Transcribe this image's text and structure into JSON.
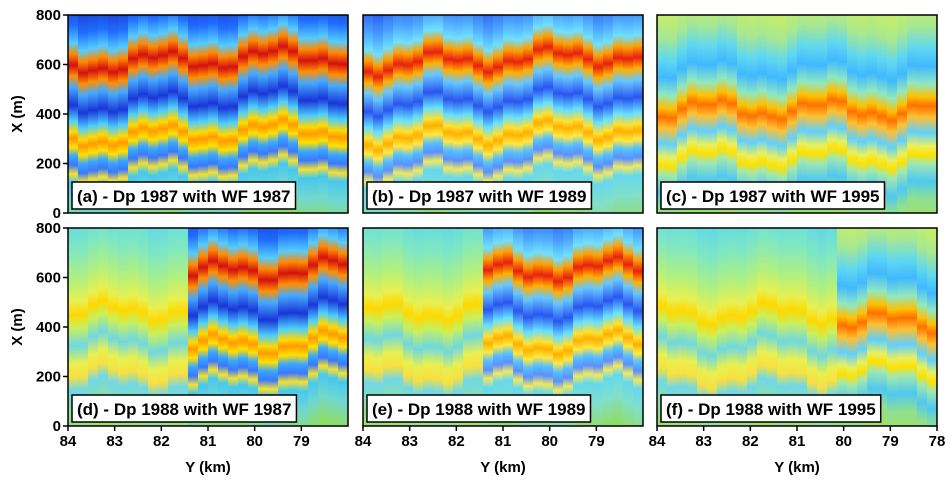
{
  "chart_data": [
    {
      "type": "heatmap",
      "title": "(a) - Dp 1987 with WF 1987",
      "ylabel": "X (m)",
      "xlim": [
        84,
        78
      ],
      "ylim": [
        0,
        800
      ],
      "yticks": [
        0,
        200,
        400,
        600,
        800
      ]
    },
    {
      "type": "heatmap",
      "title": "(b) - Dp 1987 with WF 1989",
      "xlim": [
        84,
        78
      ],
      "ylim": [
        0,
        800
      ]
    },
    {
      "type": "heatmap",
      "title": "(c) - Dp 1987 with WF 1995",
      "xlim": [
        84,
        78
      ],
      "ylim": [
        0,
        800
      ]
    },
    {
      "type": "heatmap",
      "title": "(d) - Dp 1988 with WF 1987",
      "ylabel": "X (m)",
      "xlabel": "Y (km)",
      "xlim": [
        84,
        78
      ],
      "ylim": [
        0,
        800
      ],
      "yticks": [
        0,
        200,
        400,
        600,
        800
      ],
      "xticks": [
        84,
        83,
        82,
        81,
        80,
        79
      ]
    },
    {
      "type": "heatmap",
      "title": "(e) - Dp 1988 with WF 1989",
      "xlabel": "Y (km)",
      "xlim": [
        84,
        78
      ],
      "ylim": [
        0,
        800
      ],
      "xticks": [
        84,
        83,
        82,
        81,
        80,
        79
      ]
    },
    {
      "type": "heatmap",
      "title": "(f) - Dp 1988 with WF 1995",
      "xlabel": "Y (km)",
      "xlim": [
        84,
        78
      ],
      "ylim": [
        0,
        800
      ],
      "xticks": [
        84,
        83,
        82,
        81,
        80,
        79,
        78
      ]
    }
  ]
}
